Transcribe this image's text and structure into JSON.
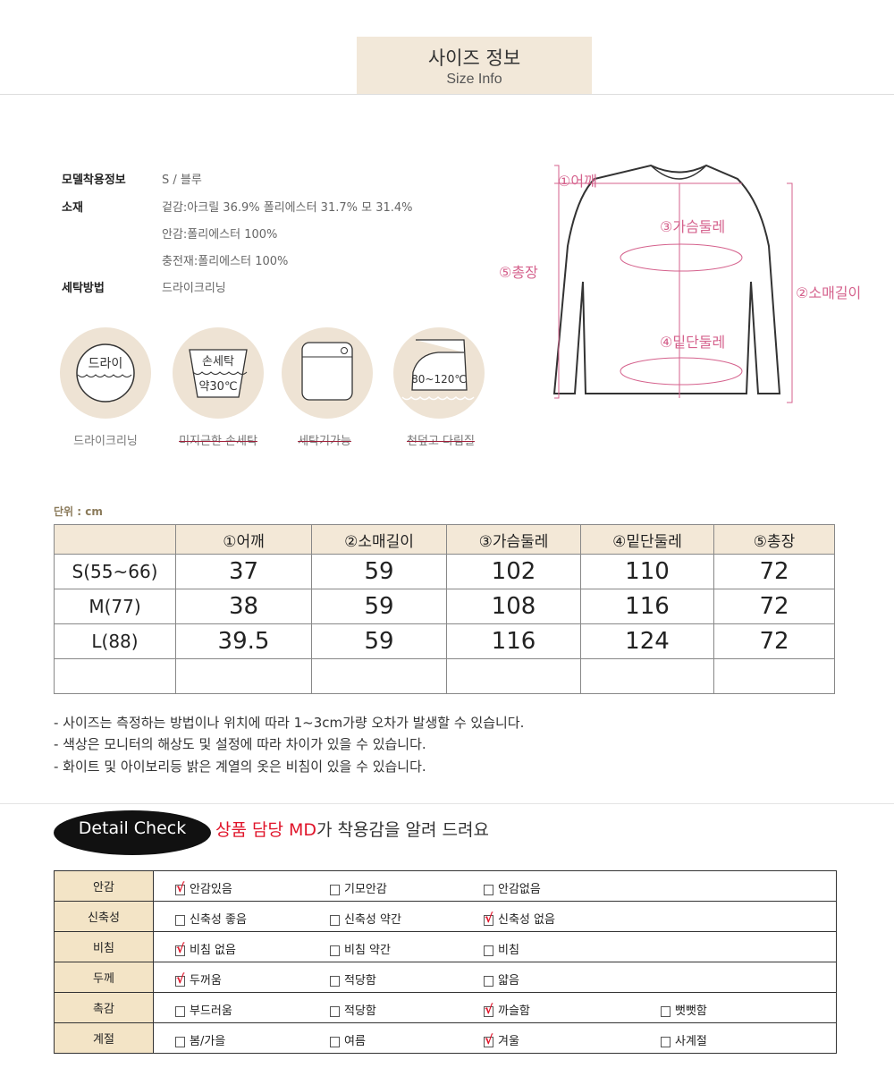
{
  "header": {
    "title": "사이즈 정보",
    "subtitle": "Size Info"
  },
  "info": [
    {
      "label": "모델착용정보",
      "values": [
        "S / 블루"
      ]
    },
    {
      "label": "소재",
      "values": [
        "겉감:아크릴 36.9% 폴리에스터 31.7% 모 31.4%",
        "안감:폴리에스터 100%",
        "충전재:폴리에스터 100%"
      ]
    },
    {
      "label": "세탁방법",
      "values": [
        "드라이크리닝"
      ]
    }
  ],
  "care_icons": [
    {
      "icon": "dry-clean-icon",
      "inner": "드라이",
      "label": "드라이크리닝",
      "strike": false
    },
    {
      "icon": "hand-wash-icon",
      "inner": "손세탁",
      "inner2": "약30℃",
      "label": "미지근한 손세탁",
      "strike": true
    },
    {
      "icon": "washing-machine-icon",
      "label": "세탁기가능",
      "strike": true
    },
    {
      "icon": "iron-icon",
      "inner": "80~120℃",
      "label": "천덮고 다림질",
      "strike": true
    }
  ],
  "diagram": {
    "labels": [
      "①어깨",
      "②소매길이",
      "③가슴둘레",
      "④밑단둘레",
      "⑤총장"
    ],
    "color": "#d5628d"
  },
  "size_table": {
    "unit": "단위 : cm",
    "headers": [
      "",
      "①어깨",
      "②소매길이",
      "③가슴둘레",
      "④밑단둘레",
      "⑤총장"
    ],
    "rows": [
      [
        "S(55~66)",
        "37",
        "59",
        "102",
        "110",
        "72"
      ],
      [
        "M(77)",
        "38",
        "59",
        "108",
        "116",
        "72"
      ],
      [
        "L(88)",
        "39.5",
        "59",
        "116",
        "124",
        "72"
      ],
      [
        "",
        "",
        "",
        "",
        "",
        ""
      ]
    ]
  },
  "notes": [
    "- 사이즈는 측정하는 방법이나 위치에 따라 1~3cm가량 오차가 발생할 수 있습니다.",
    "- 색상은 모니터의 해상도 및 설정에 따라 차이가 있을 수 있습니다.",
    "- 화이트 및 아이보리등 밝은 계열의 옷은 비침이 있을 수 있습니다."
  ],
  "detail": {
    "badge": "Detail Check",
    "title_red": "상품 담당 MD",
    "title_rest": "가 착용감을 알려 드려요",
    "rows": [
      {
        "label": "안감",
        "options": [
          {
            "text": "안감있음",
            "checked": true
          },
          {
            "text": "기모안감",
            "checked": false
          },
          {
            "text": "안감없음",
            "checked": false
          }
        ]
      },
      {
        "label": "신축성",
        "options": [
          {
            "text": "신축성 좋음",
            "checked": false
          },
          {
            "text": "신축성 약간",
            "checked": false
          },
          {
            "text": "신축성 없음",
            "checked": true
          }
        ]
      },
      {
        "label": "비침",
        "options": [
          {
            "text": "비침 없음",
            "checked": true
          },
          {
            "text": "비침 약간",
            "checked": false
          },
          {
            "text": "비침",
            "checked": false
          }
        ]
      },
      {
        "label": "두께",
        "options": [
          {
            "text": "두꺼움",
            "checked": true
          },
          {
            "text": "적당함",
            "checked": false
          },
          {
            "text": "얇음",
            "checked": false
          }
        ]
      },
      {
        "label": "촉감",
        "options": [
          {
            "text": "부드러움",
            "checked": false
          },
          {
            "text": "적당함",
            "checked": false
          },
          {
            "text": "까슬함",
            "checked": true
          },
          {
            "text": "뻣뻣함",
            "checked": false
          }
        ]
      },
      {
        "label": "계절",
        "options": [
          {
            "text": "봄/가을",
            "checked": false
          },
          {
            "text": "여름",
            "checked": false
          },
          {
            "text": "겨울",
            "checked": true
          },
          {
            "text": "사계절",
            "checked": false
          }
        ]
      }
    ]
  }
}
